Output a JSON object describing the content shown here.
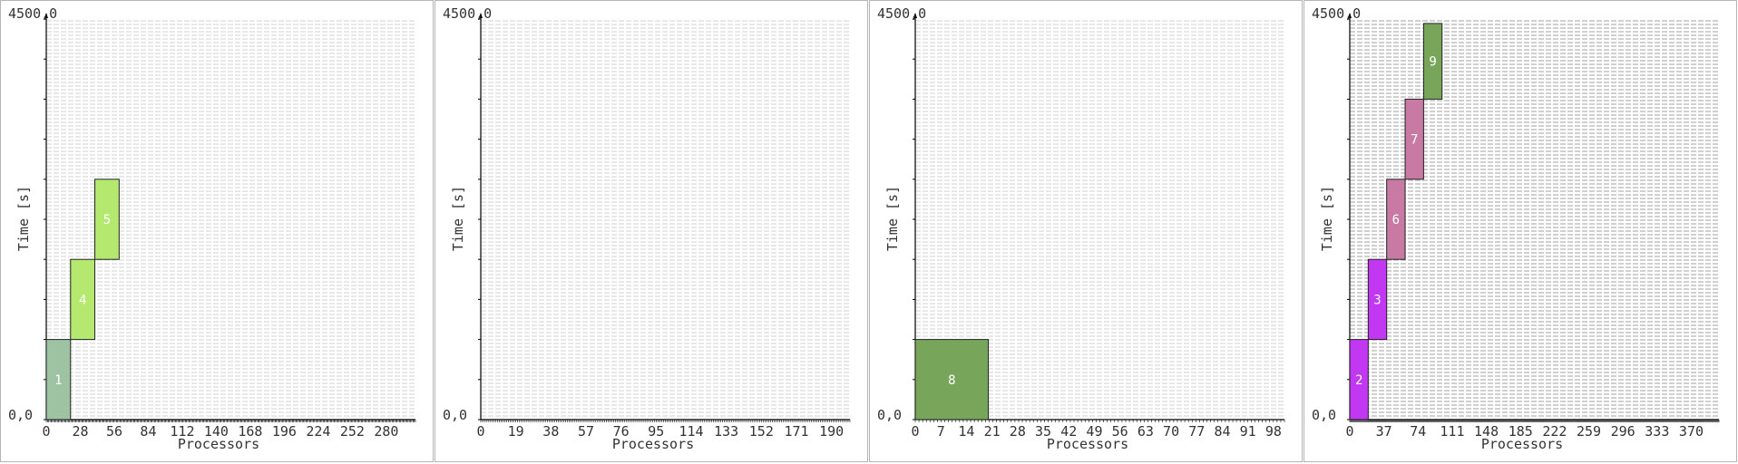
{
  "chart_data": [
    {
      "type": "gantt",
      "ymax_label": "4500,0",
      "origin_label": "0,0",
      "ylabel": "Time [s]",
      "xlabel": "Processors",
      "xlim": [
        0,
        304
      ],
      "ylim": [
        0,
        4500
      ],
      "xticks": [
        0,
        28,
        56,
        84,
        112,
        140,
        168,
        196,
        224,
        252,
        280
      ],
      "resources": 300,
      "gridline_color": "#d9d9d9",
      "jobs": [
        {
          "id": "1",
          "x_start": 0,
          "x_end": 20,
          "y_start": 0,
          "y_end": 900,
          "color": "#9dc3a3"
        },
        {
          "id": "4",
          "x_start": 20,
          "x_end": 40,
          "y_start": 900,
          "y_end": 1800,
          "color": "#b5e86f"
        },
        {
          "id": "5",
          "x_start": 40,
          "x_end": 60,
          "y_start": 1800,
          "y_end": 2700,
          "color": "#b5e86f"
        }
      ]
    },
    {
      "type": "gantt",
      "ymax_label": "4500,0",
      "origin_label": "0,0",
      "ylabel": "Time [s]",
      "xlabel": "Processors",
      "xlim": [
        0,
        200
      ],
      "ylim": [
        0,
        4500
      ],
      "xticks": [
        0,
        19,
        38,
        57,
        76,
        95,
        114,
        133,
        152,
        171,
        190
      ],
      "resources": 200,
      "gridline_color": "#d9d9d9",
      "jobs": []
    },
    {
      "type": "gantt",
      "ymax_label": "4500,0",
      "origin_label": "0,0",
      "ylabel": "Time [s]",
      "xlabel": "Processors",
      "xlim": [
        0,
        101
      ],
      "ylim": [
        0,
        4500
      ],
      "xticks": [
        0,
        7,
        14,
        21,
        28,
        35,
        42,
        49,
        56,
        63,
        70,
        77,
        84,
        91,
        98
      ],
      "resources": 100,
      "gridline_color": "#d9d9d9",
      "jobs": [
        {
          "id": "8",
          "x_start": 0,
          "x_end": 20,
          "y_start": 0,
          "y_end": 900,
          "color": "#77a65a"
        }
      ]
    },
    {
      "type": "gantt",
      "ymax_label": "4500,0",
      "origin_label": "0,0",
      "ylabel": "Time [s]",
      "xlabel": "Processors",
      "xlim": [
        0,
        400
      ],
      "ylim": [
        0,
        4500
      ],
      "xticks": [
        0,
        37,
        74,
        111,
        148,
        185,
        222,
        259,
        296,
        333,
        370
      ],
      "resources": 400,
      "gridline_color": "#b5b5b5",
      "jobs": [
        {
          "id": "2",
          "x_start": 0,
          "x_end": 20,
          "y_start": 0,
          "y_end": 900,
          "color": "#c237f2"
        },
        {
          "id": "3",
          "x_start": 20,
          "x_end": 40,
          "y_start": 900,
          "y_end": 1800,
          "color": "#c237f2"
        },
        {
          "id": "6",
          "x_start": 40,
          "x_end": 60,
          "y_start": 1800,
          "y_end": 2700,
          "color": "#c87aa4"
        },
        {
          "id": "7",
          "x_start": 60,
          "x_end": 80,
          "y_start": 2700,
          "y_end": 3600,
          "color": "#c87aa4"
        },
        {
          "id": "9",
          "x_start": 80,
          "x_end": 100,
          "y_start": 3600,
          "y_end": 4450,
          "color": "#77a65a"
        }
      ]
    }
  ]
}
